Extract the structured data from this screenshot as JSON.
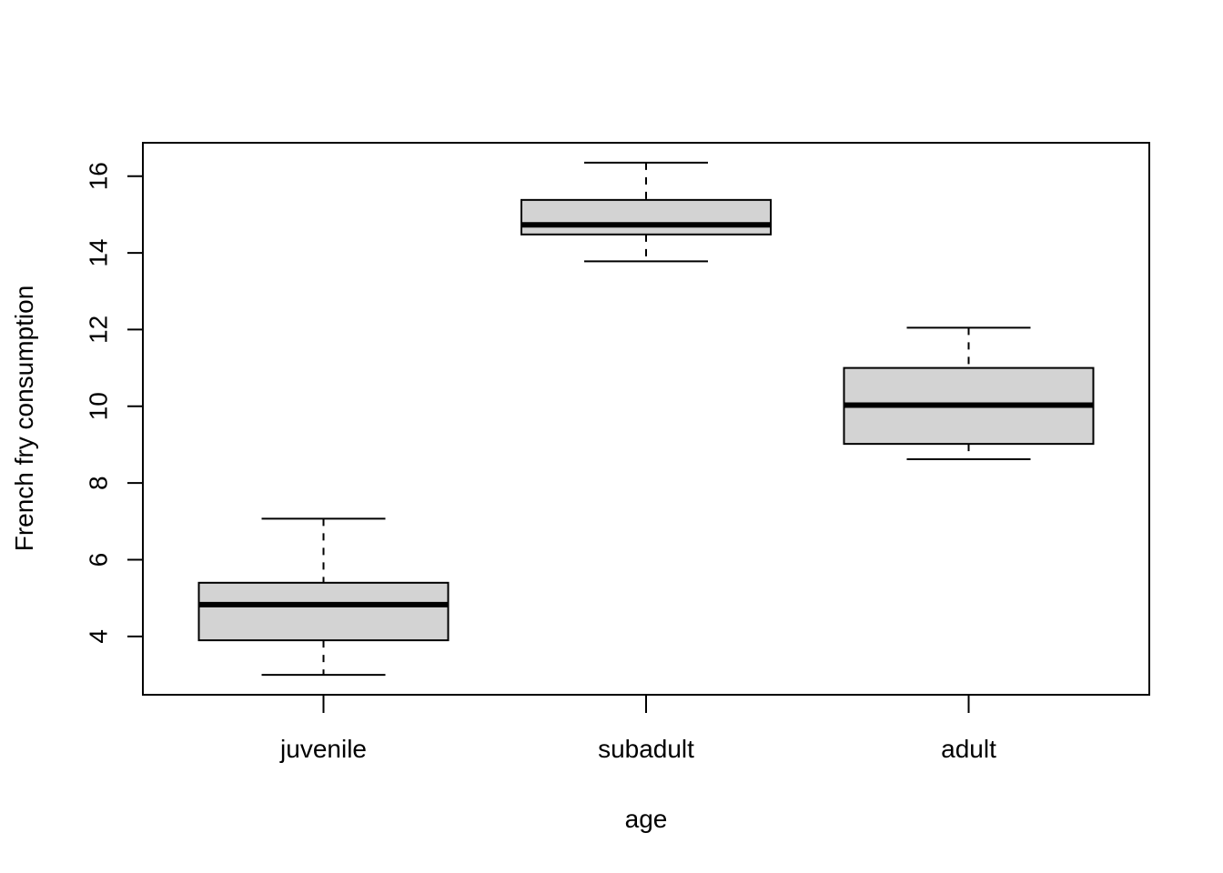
{
  "chart_data": {
    "type": "boxplot",
    "title": "",
    "xlabel": "age",
    "ylabel": "French fry consumption",
    "categories": [
      "juvenile",
      "subadult",
      "adult"
    ],
    "boxes": [
      {
        "category": "juvenile",
        "whisker_low": 3.0,
        "q1": 3.9,
        "median": 4.83,
        "q3": 5.4,
        "whisker_high": 7.07
      },
      {
        "category": "subadult",
        "whisker_low": 13.78,
        "q1": 14.48,
        "median": 14.73,
        "q3": 15.38,
        "whisker_high": 16.35
      },
      {
        "category": "adult",
        "whisker_low": 8.62,
        "q1": 9.02,
        "median": 10.03,
        "q3": 11.0,
        "whisker_high": 12.05
      }
    ],
    "ylim": [
      2.48,
      16.87
    ],
    "yticks": [
      4,
      6,
      8,
      10,
      12,
      14,
      16
    ],
    "box_fill": "#d3d3d3",
    "line_color": "#000000",
    "grid": false,
    "legend": "none"
  }
}
